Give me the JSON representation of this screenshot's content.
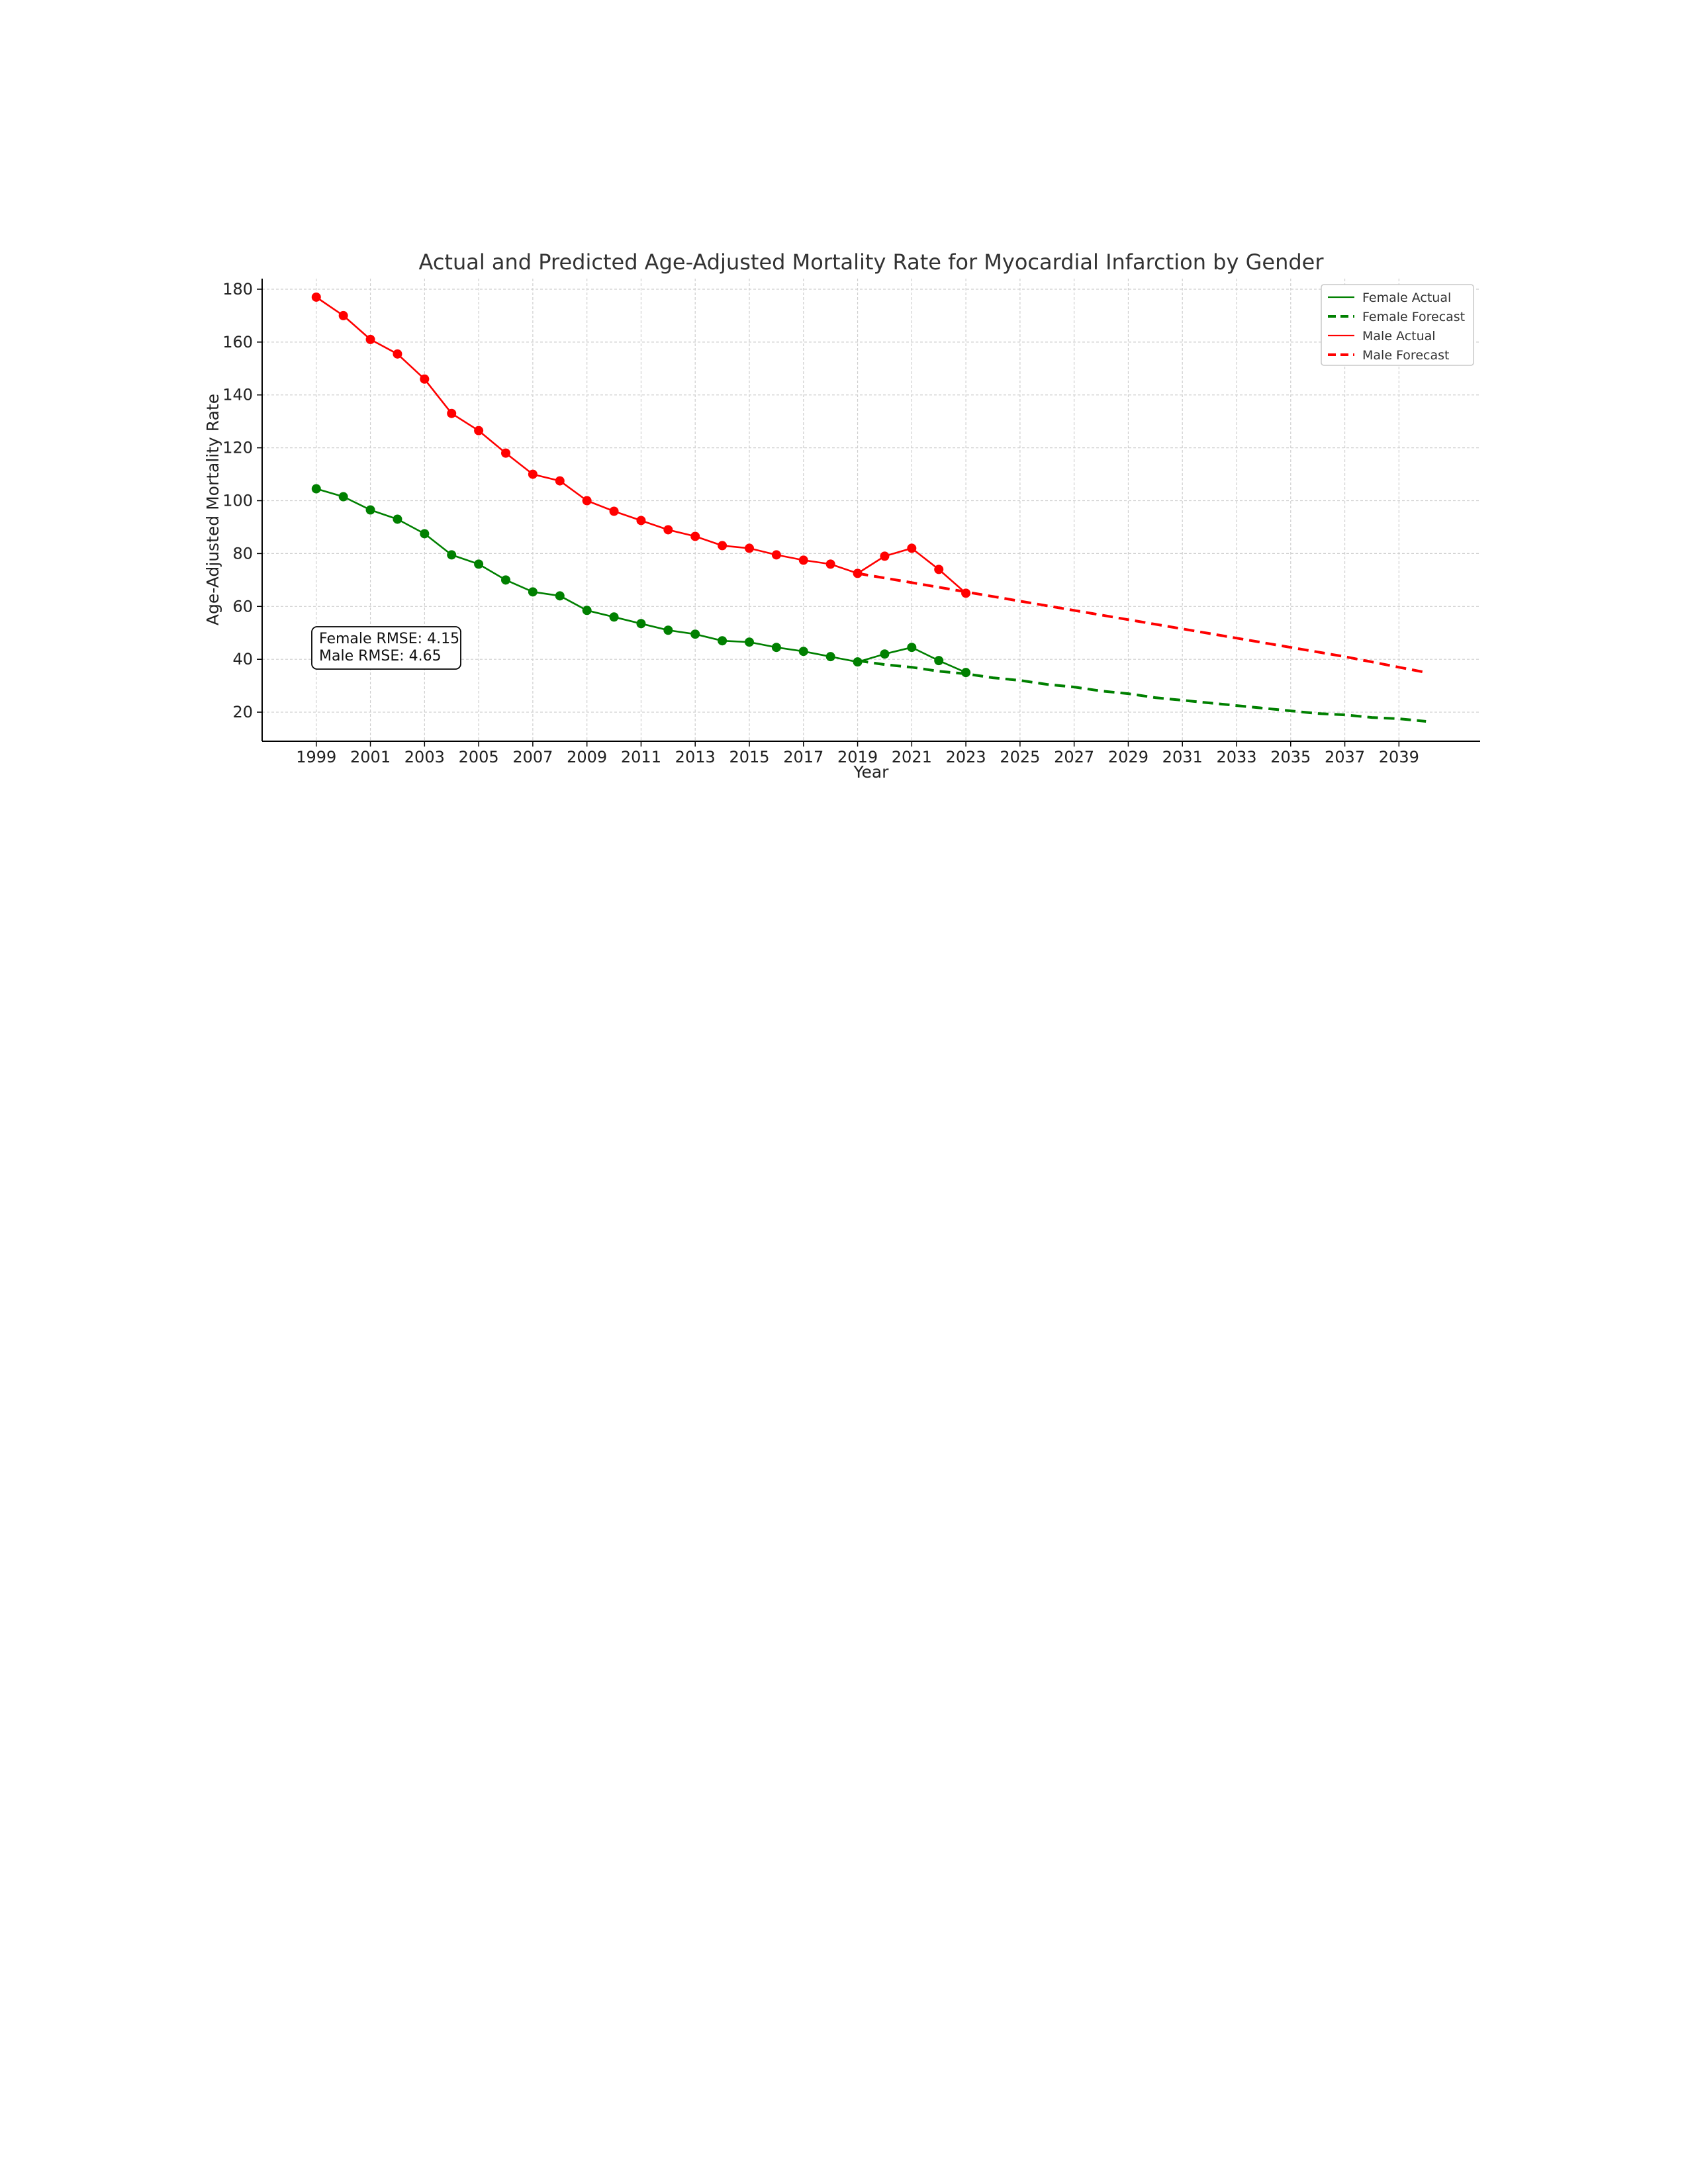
{
  "chart_data": {
    "type": "line",
    "title": "Actual and Predicted Age-Adjusted Mortality Rate for Myocardial Infarction by Gender",
    "xlabel": "Year",
    "ylabel": "Age-Adjusted Mortality Rate",
    "xlim": [
      1997,
      2042
    ],
    "ylim": [
      9,
      184
    ],
    "grid": true,
    "legend_position": "top-right",
    "x_ticks": [
      1999,
      2001,
      2003,
      2005,
      2007,
      2009,
      2011,
      2013,
      2015,
      2017,
      2019,
      2021,
      2023,
      2025,
      2027,
      2029,
      2031,
      2033,
      2035,
      2037,
      2039
    ],
    "y_ticks": [
      20,
      40,
      60,
      80,
      100,
      120,
      140,
      160,
      180
    ],
    "series": [
      {
        "name": "Female Actual",
        "color": "#008000",
        "style": "solid",
        "markers": true,
        "x": [
          1999,
          2000,
          2001,
          2002,
          2003,
          2004,
          2005,
          2006,
          2007,
          2008,
          2009,
          2010,
          2011,
          2012,
          2013,
          2014,
          2015,
          2016,
          2017,
          2018,
          2019,
          2020,
          2021,
          2022,
          2023
        ],
        "y": [
          104.5,
          101.5,
          96.5,
          93,
          87.5,
          79.5,
          76,
          70,
          65.5,
          64,
          58.5,
          56,
          53.5,
          51,
          49.5,
          47,
          46.5,
          44.5,
          43,
          41,
          39,
          42,
          44.5,
          39.5,
          35
        ]
      },
      {
        "name": "Female Forecast",
        "color": "#008000",
        "style": "dashed",
        "markers": false,
        "x": [
          2019,
          2020,
          2021,
          2022,
          2023,
          2024,
          2025,
          2026,
          2027,
          2028,
          2029,
          2030,
          2031,
          2032,
          2033,
          2034,
          2035,
          2036,
          2037,
          2038,
          2039,
          2040
        ],
        "y": [
          39.5,
          38,
          37,
          35.5,
          34.5,
          33,
          32,
          30.5,
          29.5,
          28,
          27,
          25.5,
          24.5,
          23.5,
          22.5,
          21.5,
          20.5,
          19.5,
          19,
          18,
          17.5,
          16.5
        ]
      },
      {
        "name": "Male Actual",
        "color": "#ff0000",
        "style": "solid",
        "markers": true,
        "x": [
          1999,
          2000,
          2001,
          2002,
          2003,
          2004,
          2005,
          2006,
          2007,
          2008,
          2009,
          2010,
          2011,
          2012,
          2013,
          2014,
          2015,
          2016,
          2017,
          2018,
          2019,
          2020,
          2021,
          2022,
          2023
        ],
        "y": [
          177,
          170,
          161,
          155.5,
          146,
          133,
          126.5,
          118,
          110,
          107.5,
          100,
          96,
          92.5,
          89,
          86.5,
          83,
          82,
          79.5,
          77.5,
          76,
          72.5,
          79,
          82,
          74,
          65
        ]
      },
      {
        "name": "Male Forecast",
        "color": "#ff0000",
        "style": "dashed",
        "markers": false,
        "x": [
          2019,
          2023,
          2025,
          2027,
          2029,
          2031,
          2033,
          2035,
          2037,
          2039,
          2040
        ],
        "y": [
          72.5,
          65.5,
          62,
          58.5,
          55,
          51.5,
          48,
          44.5,
          41,
          37,
          35
        ]
      }
    ],
    "annotation": {
      "female_rmse": "Female RMSE: 4.15",
      "male_rmse": "Male RMSE: 4.65"
    }
  }
}
